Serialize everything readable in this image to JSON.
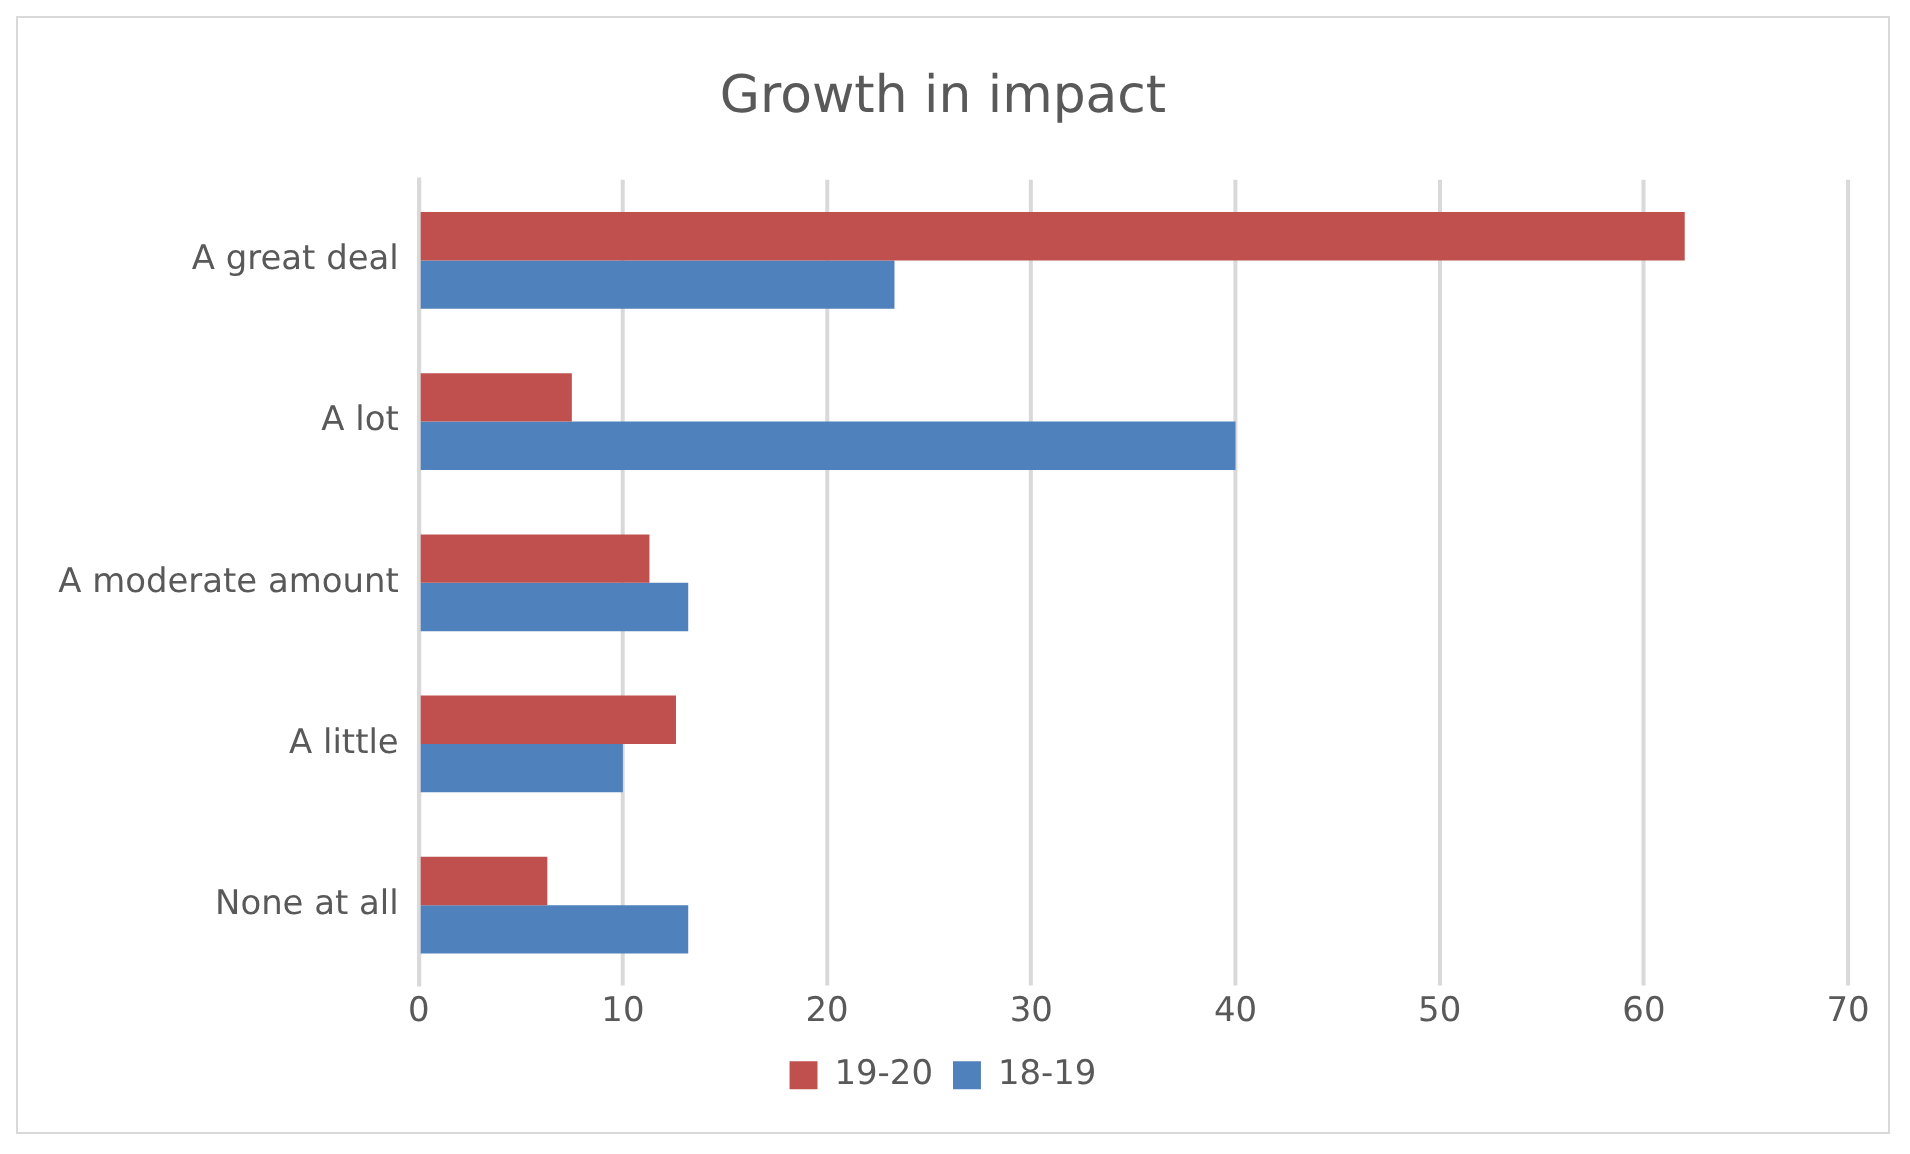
{
  "chart_data": {
    "type": "bar",
    "orientation": "horizontal",
    "title": "Growth in impact",
    "categories": [
      "A great deal",
      "A lot",
      "A moderate amount",
      "A little",
      "None at all"
    ],
    "series": [
      {
        "name": "19-20",
        "color": "#c0504d",
        "values": [
          62,
          7.5,
          11.3,
          12.6,
          6.3
        ]
      },
      {
        "name": "18-19",
        "color": "#4f81bd",
        "values": [
          23.3,
          40,
          13.2,
          10,
          13.2
        ]
      }
    ],
    "xlim": [
      0,
      70
    ],
    "xticks": [
      0,
      10,
      20,
      30,
      40,
      50,
      60,
      70
    ],
    "grid": "x",
    "legend": "bottom"
  }
}
